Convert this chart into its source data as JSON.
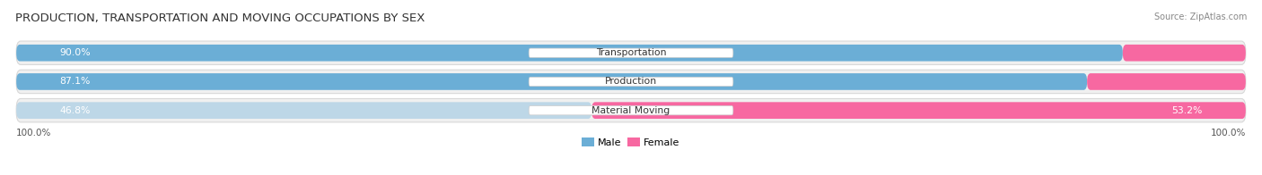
{
  "title": "PRODUCTION, TRANSPORTATION AND MOVING OCCUPATIONS BY SEX",
  "source": "Source: ZipAtlas.com",
  "categories": [
    "Transportation",
    "Production",
    "Material Moving"
  ],
  "male_values": [
    90.0,
    87.1,
    46.8
  ],
  "female_values": [
    10.0,
    12.9,
    53.2
  ],
  "male_color_strong": "#6baed6",
  "male_color_light": "#bdd7e7",
  "female_color_strong": "#f768a1",
  "female_color_light": "#fbb4c9",
  "row_bg_color": "#f0f0f0",
  "row_edge_color": "#d8d8d8",
  "title_fontsize": 9.5,
  "label_fontsize": 7.8,
  "tick_fontsize": 7.5,
  "legend_fontsize": 8,
  "left_axis_label": "100.0%",
  "right_axis_label": "100.0%"
}
